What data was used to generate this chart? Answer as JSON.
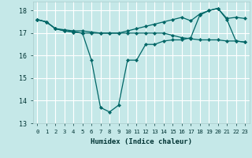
{
  "xlabel": "Humidex (Indice chaleur)",
  "xlim": [
    -0.5,
    23.5
  ],
  "ylim": [
    13,
    18.4
  ],
  "yticks": [
    13,
    14,
    15,
    16,
    17,
    18
  ],
  "xticks": [
    0,
    1,
    2,
    3,
    4,
    5,
    6,
    7,
    8,
    9,
    10,
    11,
    12,
    13,
    14,
    15,
    16,
    17,
    18,
    19,
    20,
    21,
    22,
    23
  ],
  "bg_color": "#c5e8e8",
  "grid_color": "#ffffff",
  "line_color": "#006666",
  "line1_x": [
    0,
    1,
    2,
    3,
    4,
    5,
    6,
    7,
    8,
    9,
    10,
    11,
    12,
    13,
    14,
    15,
    16,
    17,
    18,
    19,
    20,
    21,
    22,
    23
  ],
  "line1_y": [
    17.6,
    17.5,
    17.2,
    17.1,
    17.05,
    17.0,
    15.8,
    13.7,
    13.5,
    13.8,
    15.8,
    15.8,
    16.5,
    16.5,
    16.65,
    16.7,
    16.7,
    16.8,
    17.8,
    18.0,
    18.1,
    17.6,
    16.65,
    16.6
  ],
  "line2_x": [
    0,
    1,
    2,
    3,
    4,
    5,
    6,
    7,
    8,
    9,
    10,
    11,
    12,
    13,
    14,
    15,
    16,
    17,
    18,
    19,
    20,
    21,
    22,
    23
  ],
  "line2_y": [
    17.6,
    17.5,
    17.2,
    17.15,
    17.1,
    17.1,
    17.05,
    17.0,
    17.0,
    17.0,
    17.1,
    17.2,
    17.3,
    17.4,
    17.5,
    17.6,
    17.7,
    17.55,
    17.85,
    18.0,
    18.1,
    17.65,
    17.7,
    17.65
  ],
  "line3_x": [
    0,
    1,
    2,
    3,
    4,
    5,
    6,
    7,
    8,
    9,
    10,
    11,
    12,
    13,
    14,
    15,
    16,
    17,
    18,
    19,
    20,
    21,
    22,
    23
  ],
  "line3_y": [
    17.6,
    17.5,
    17.2,
    17.1,
    17.05,
    17.0,
    17.0,
    17.0,
    17.0,
    17.0,
    17.0,
    17.0,
    17.0,
    17.0,
    17.0,
    16.9,
    16.8,
    16.75,
    16.7,
    16.7,
    16.7,
    16.65,
    16.65,
    16.6
  ]
}
